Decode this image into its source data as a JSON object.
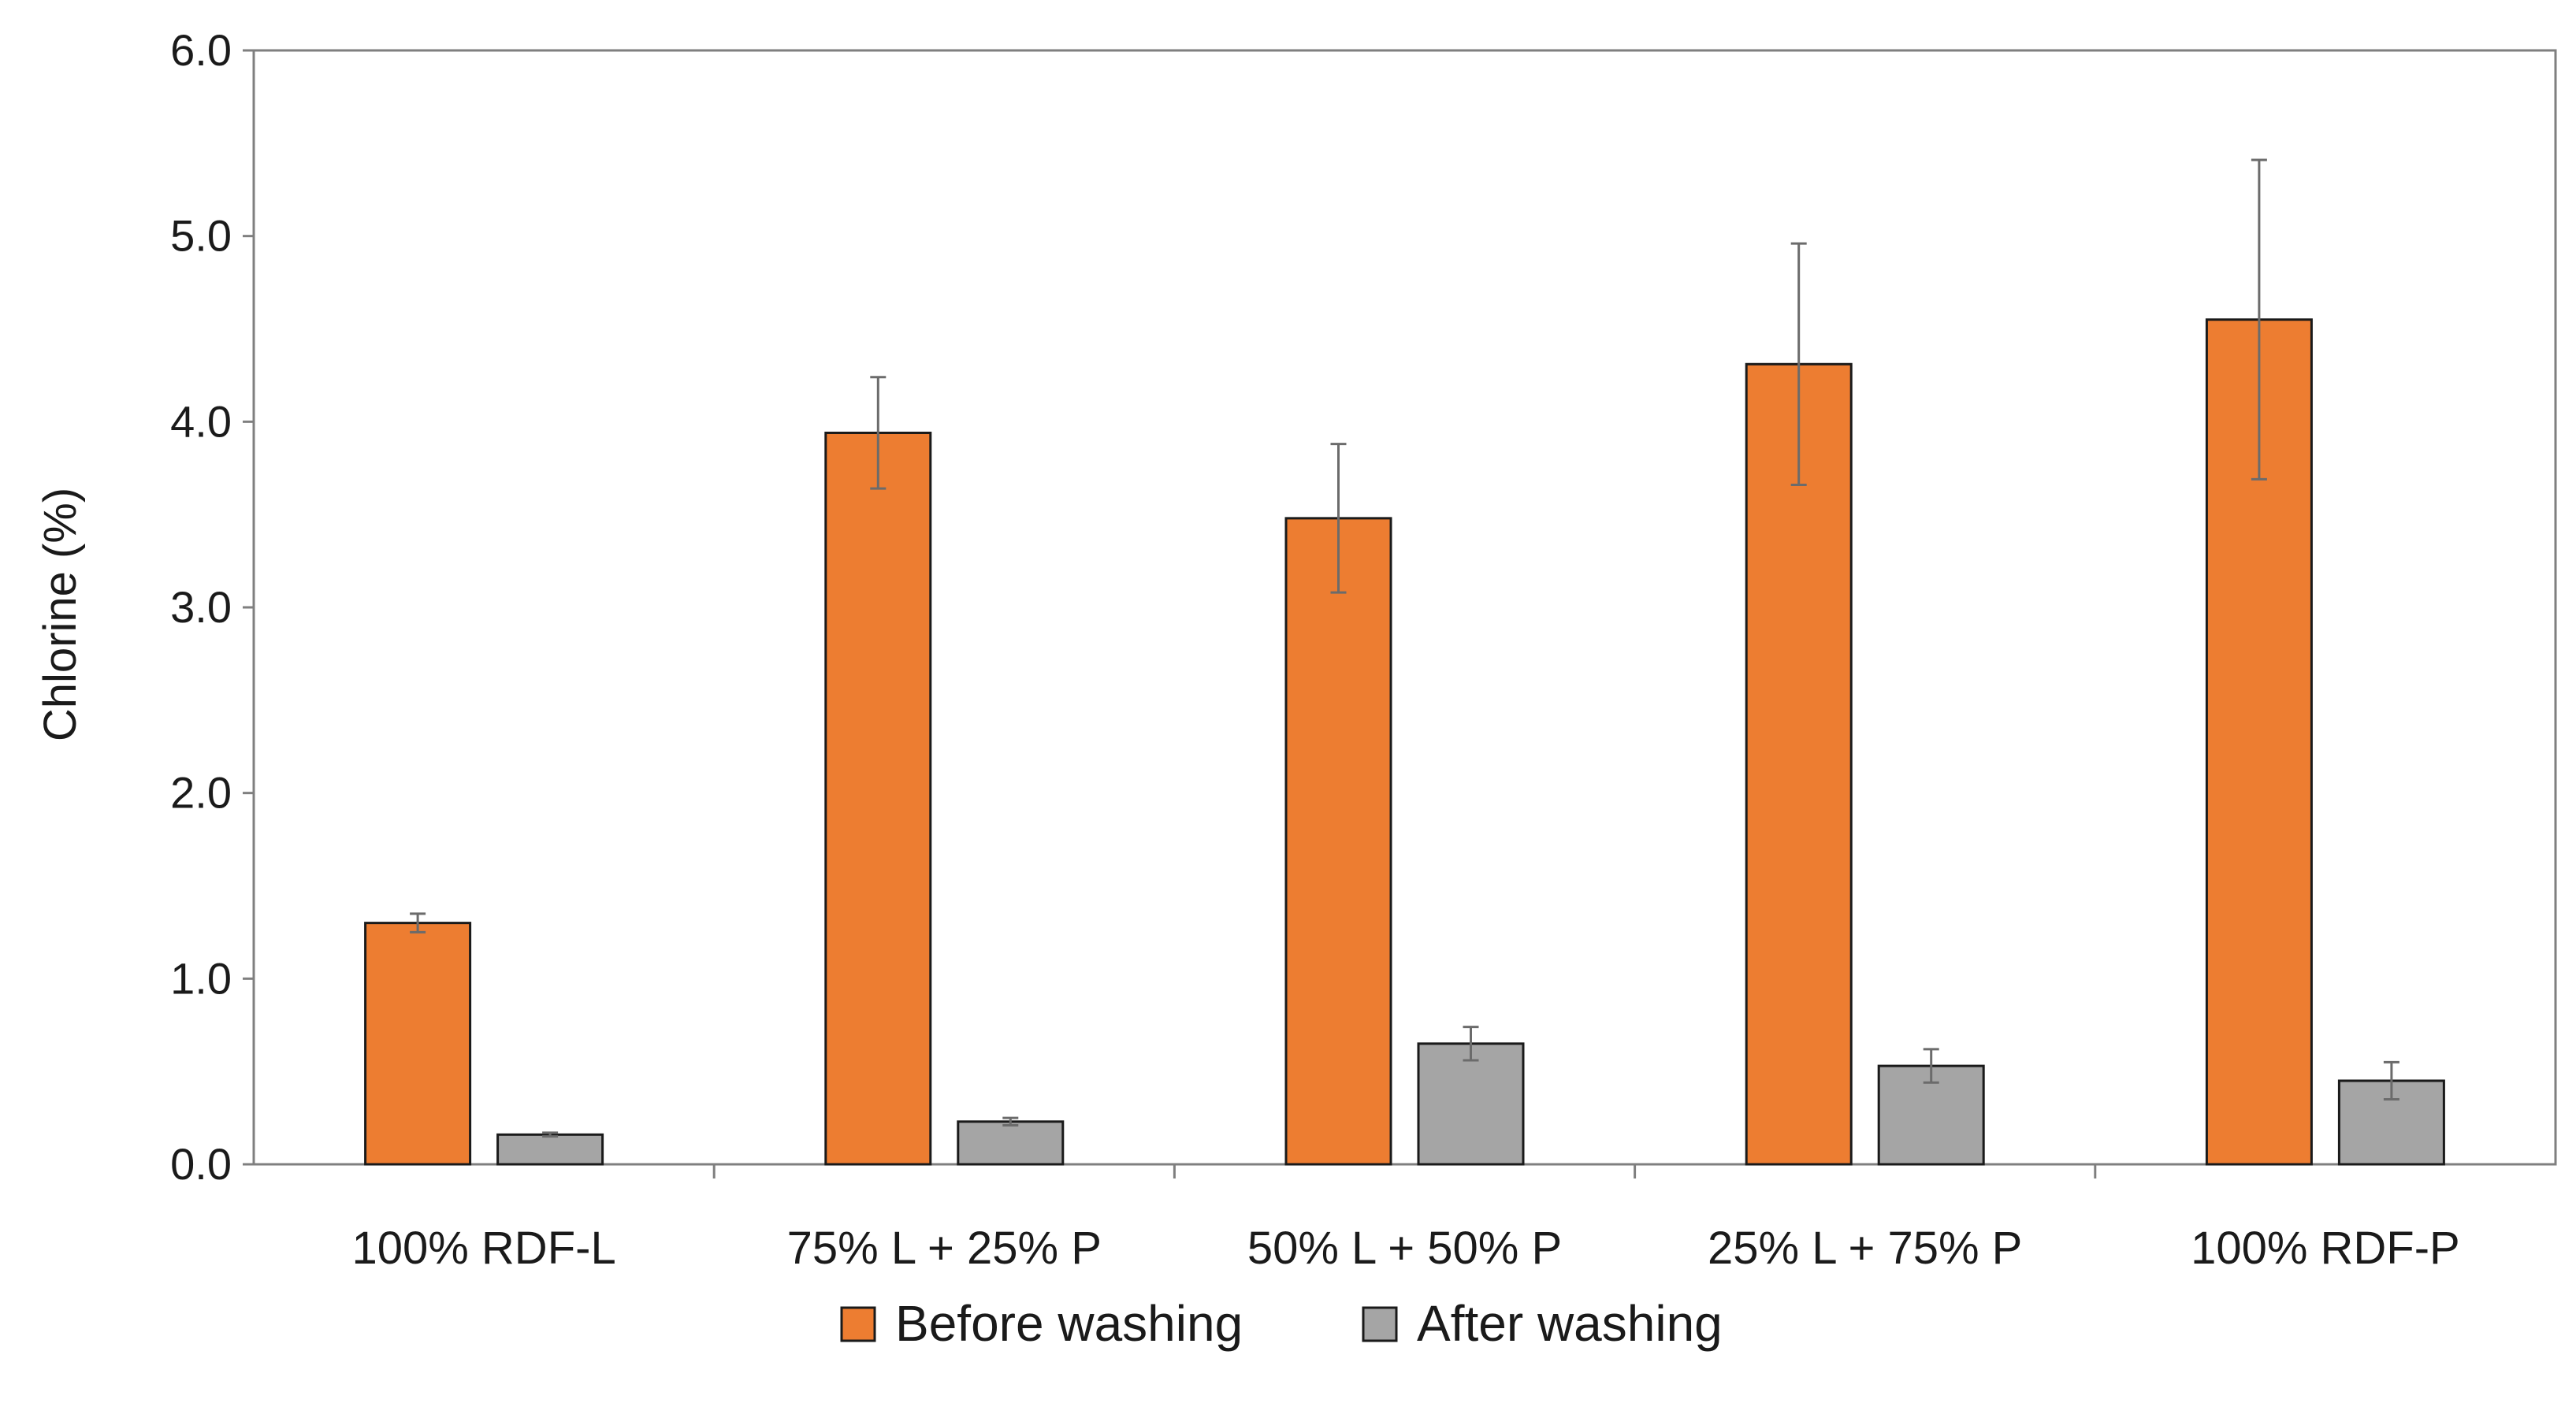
{
  "chart_data": {
    "type": "bar",
    "title": "",
    "xlabel": "",
    "ylabel": "Chlorine (%)",
    "ylim": [
      0,
      6
    ],
    "yticks": [
      "0.0",
      "1.0",
      "2.0",
      "3.0",
      "4.0",
      "5.0",
      "6.0"
    ],
    "grid": false,
    "legend_position": "bottom",
    "categories": [
      "100% RDF-L",
      "75% L + 25% P",
      "50% L + 50% P",
      "25% L + 75% P",
      "100% RDF-P"
    ],
    "series": [
      {
        "name": "Before washing",
        "color": "#ed7d31",
        "values": [
          1.3,
          3.94,
          3.48,
          4.31,
          4.55
        ],
        "errors": [
          0.05,
          0.3,
          0.4,
          0.65,
          0.86
        ]
      },
      {
        "name": "After washing",
        "color": "#a5a5a5",
        "values": [
          0.16,
          0.23,
          0.65,
          0.53,
          0.45
        ],
        "errors": [
          0.01,
          0.02,
          0.09,
          0.09,
          0.1
        ]
      }
    ]
  }
}
